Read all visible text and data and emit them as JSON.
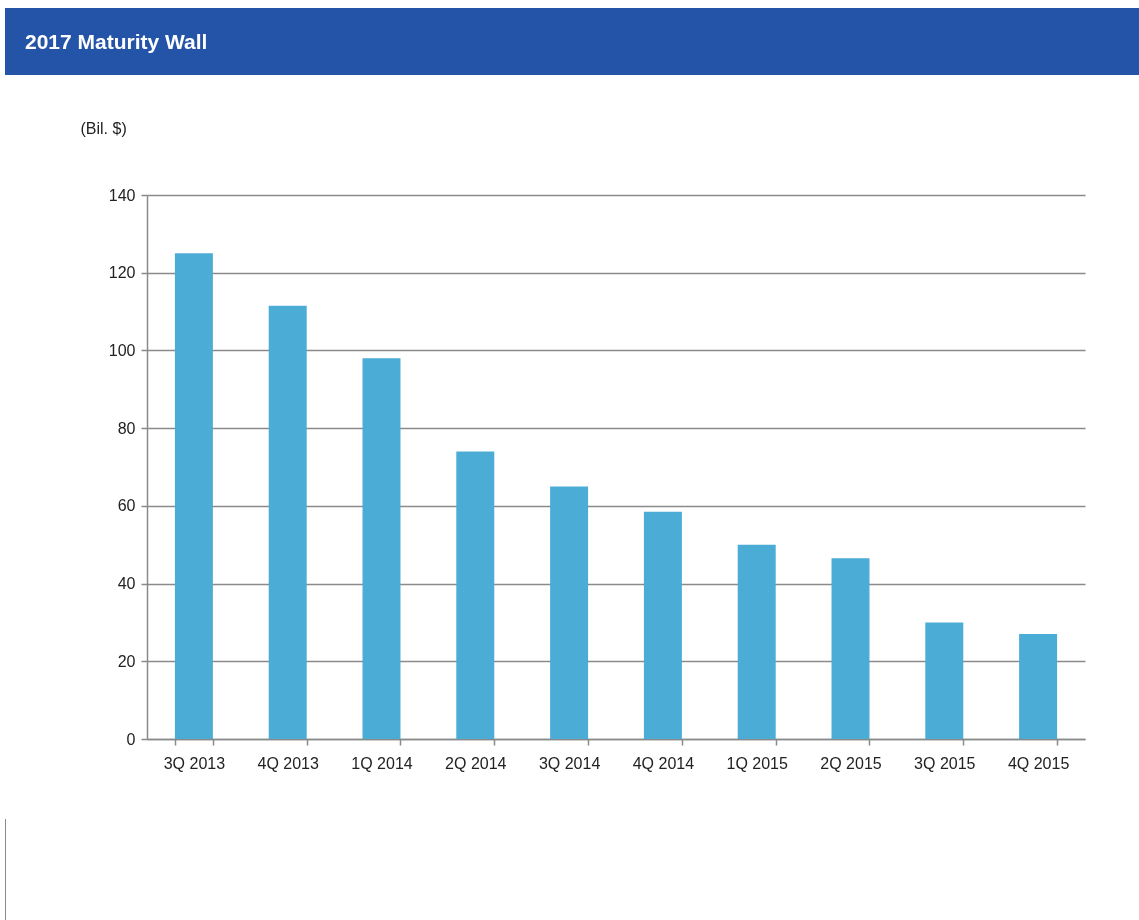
{
  "chart_data": {
    "type": "bar",
    "title": "2017 Maturity Wall",
    "ylabel": "(Bil. $)",
    "categories": [
      "3Q 2013",
      "4Q 2013",
      "1Q 2014",
      "2Q 2014",
      "3Q 2014",
      "4Q 2014",
      "1Q 2015",
      "2Q 2015",
      "3Q 2015",
      "4Q 2015"
    ],
    "values": [
      125,
      111.5,
      98,
      74,
      65,
      58.5,
      50,
      46.5,
      30,
      27
    ],
    "color": "#4bacd6",
    "ylim": [
      0,
      140
    ],
    "yticks": [
      0,
      20,
      40,
      60,
      80,
      100,
      120,
      140
    ],
    "grid": "y"
  }
}
